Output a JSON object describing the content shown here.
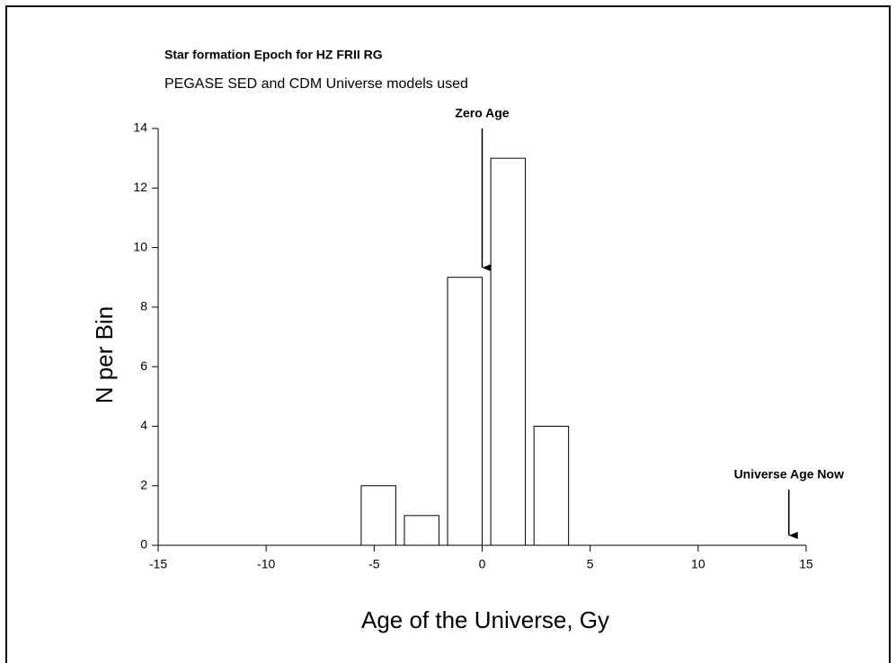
{
  "chart_data": {
    "type": "histogram",
    "title": "Star formation Epoch for HZ FRII RG",
    "subtitle": "PEGASE SED and CDM Universe models used",
    "x_label": "Age of the Universe, Gy",
    "y_label": "N per Bin",
    "bins": [
      -5.6,
      -3.6,
      -1.6,
      0.4,
      2.4,
      4.4
    ],
    "values": [
      2,
      1,
      9,
      13,
      4
    ],
    "color": "#ffffff",
    "xlim": [
      -15,
      15
    ],
    "xticks": [
      -15,
      -10,
      -5,
      0,
      5,
      10,
      15
    ],
    "ylim": [
      0,
      14
    ],
    "yticks": [
      0,
      2,
      4,
      6,
      8,
      10,
      12,
      14
    ],
    "annotations": [
      {
        "text": "Zero Age",
        "x": 0
      },
      {
        "text": "Universe Age Now",
        "x": 14.2
      }
    ]
  }
}
